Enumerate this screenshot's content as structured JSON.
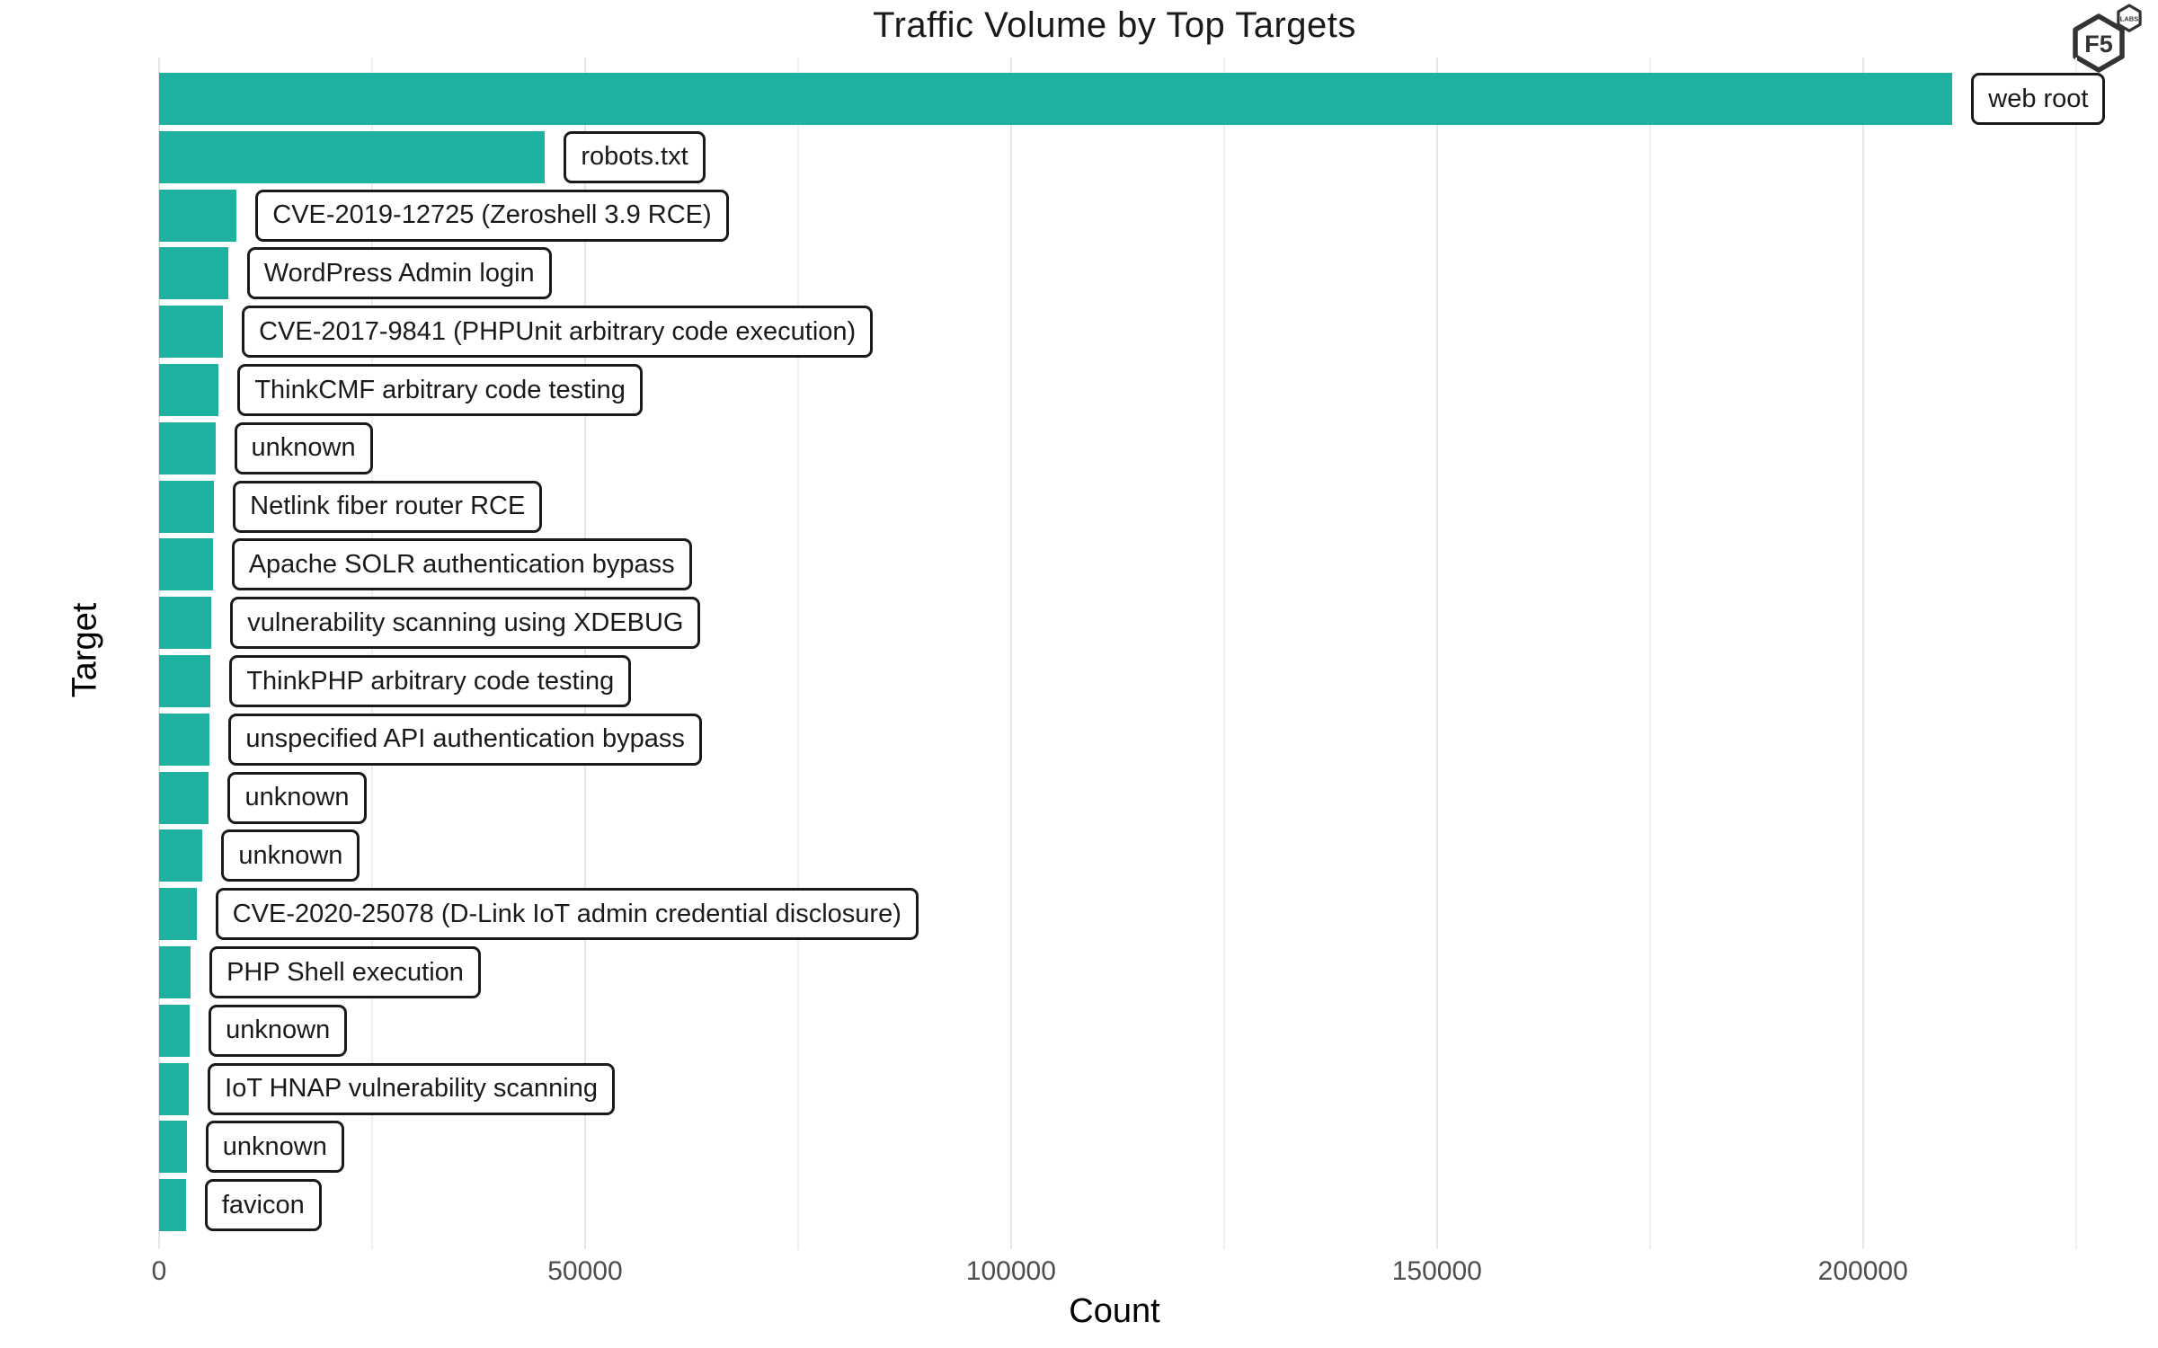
{
  "title": "Traffic Volume by Top Targets",
  "branding": {
    "logo_primary": "F5",
    "logo_secondary": "LABS",
    "logo_color": "#333333"
  },
  "chart_data": {
    "type": "bar",
    "orientation": "horizontal",
    "title": "Traffic Volume by Top Targets",
    "xlabel": "Count",
    "ylabel": "Target",
    "xlim": [
      0,
      234000
    ],
    "grid": true,
    "legend": "none",
    "bar_color": "#1fb1a0",
    "gridline_color_major": "#e6e6e6",
    "gridline_color_minor": "#efefef",
    "x_ticks": [
      {
        "value": 0,
        "label": "0"
      },
      {
        "value": 50000,
        "label": "50000"
      },
      {
        "value": 100000,
        "label": "100000"
      },
      {
        "value": 150000,
        "label": "150000"
      },
      {
        "value": 200000,
        "label": "200000"
      }
    ],
    "x_minor_gridlines": [
      25000,
      75000,
      125000,
      175000,
      225000
    ],
    "categories": [
      "web root",
      "robots.txt",
      "CVE-2019-12725 (Zeroshell 3.9 RCE)",
      "WordPress Admin login",
      "CVE-2017-9841 (PHPUnit arbitrary code execution)",
      "ThinkCMF arbitrary code testing",
      "unknown",
      "Netlink fiber router RCE",
      "Apache SOLR authentication bypass",
      "vulnerability scanning using XDEBUG",
      "ThinkPHP arbitrary code testing",
      "unspecified API authentication bypass",
      "unknown",
      "unknown",
      "CVE-2020-25078 (D-Link IoT admin credential disclosure)",
      "PHP Shell execution",
      "unknown",
      "IoT HNAP vulnerability scanning",
      "unknown",
      "favicon"
    ],
    "values": [
      210500,
      45300,
      9100,
      8100,
      7500,
      7000,
      6600,
      6450,
      6300,
      6150,
      6050,
      5950,
      5850,
      5100,
      4400,
      3700,
      3600,
      3500,
      3250,
      3150
    ]
  }
}
